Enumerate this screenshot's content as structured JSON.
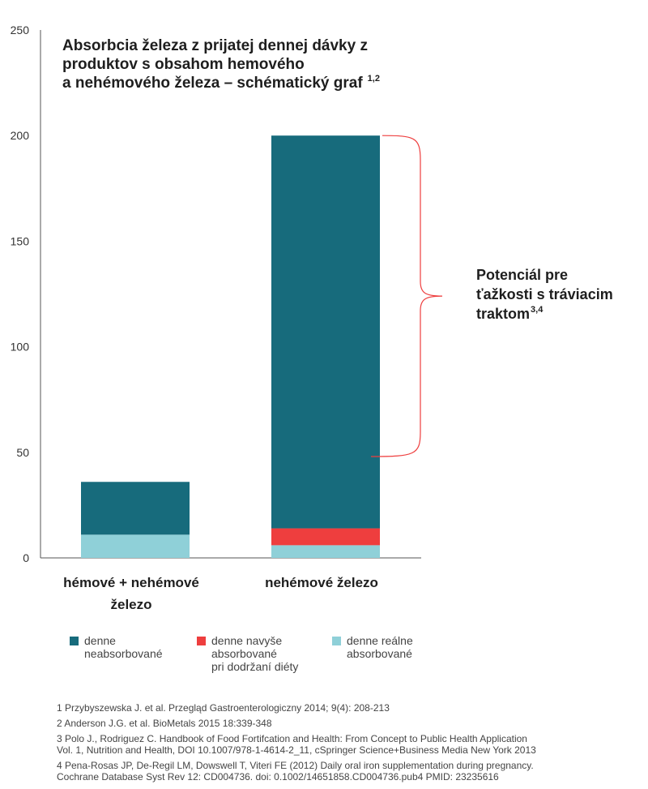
{
  "chart_data": {
    "type": "bar",
    "stacked": true,
    "title_lines": [
      "Absorbcia železa z prijatej dennej dávky z",
      "produktov s obsahom hemového",
      "a nehémového železa – schématický graf"
    ],
    "title_superscript": "1,2",
    "categories": [
      "hémové + nehémové železo",
      "nehémové železo"
    ],
    "category_label_lines": [
      [
        "hémové + nehémové",
        "železo"
      ],
      [
        "nehémové železo"
      ]
    ],
    "series": [
      {
        "name": "denne reálne absorbované",
        "values": [
          11,
          6
        ],
        "color": "#8fd0d8"
      },
      {
        "name": "denne navyše absorbované pri dodržaní diéty",
        "values": [
          0,
          8
        ],
        "color": "#ee3e3e"
      },
      {
        "name": "denne neabsorbované",
        "values": [
          25,
          186
        ],
        "color": "#176b7c"
      }
    ],
    "ylim": [
      0,
      250
    ],
    "yticks": [
      0,
      50,
      100,
      150,
      200,
      250
    ],
    "xlabel": "",
    "ylabel": "",
    "grid": false,
    "annotation": {
      "lines": [
        "Potenciál pre",
        "ťažkosti s tráviacim",
        "traktom"
      ],
      "superscript": "3,4",
      "bracket_range": [
        48,
        200
      ],
      "color": "#ee3e3e"
    },
    "legend_position": "bottom"
  },
  "legend": [
    {
      "text": "denne\nneabsorbované",
      "color": "#176b7c"
    },
    {
      "text": "denne navyše\nabsorbované\npri dodržaní diéty",
      "color": "#ee3e3e"
    },
    {
      "text": "denne reálne\nabsorbované",
      "color": "#8fd0d8"
    }
  ],
  "references": [
    "1 Przybyszewska J. et al. Przegląd Gastroenterologiczny 2014; 9(4): 208-213",
    "2 Anderson J.G. et al. BioMetals 2015 18:339-348",
    "3 Polo J., Rodriguez C. Handbook of Food Fortifcation and Health: From Concept to Public Health Application\nVol. 1, Nutrition and Health, DOI 10.1007/978-1-4614-2_11, cSpringer Science+Business Media New York 2013",
    "4 Pena-Rosas JP, De-Regil LM, Dowswell T, Viteri FE (2012) Daily oral iron supplementation during pregnancy.\nCochrane Database Syst Rev 12: CD004736. doi: 0.1002/14651858.CD004736.pub4 PMID: 23235616"
  ]
}
